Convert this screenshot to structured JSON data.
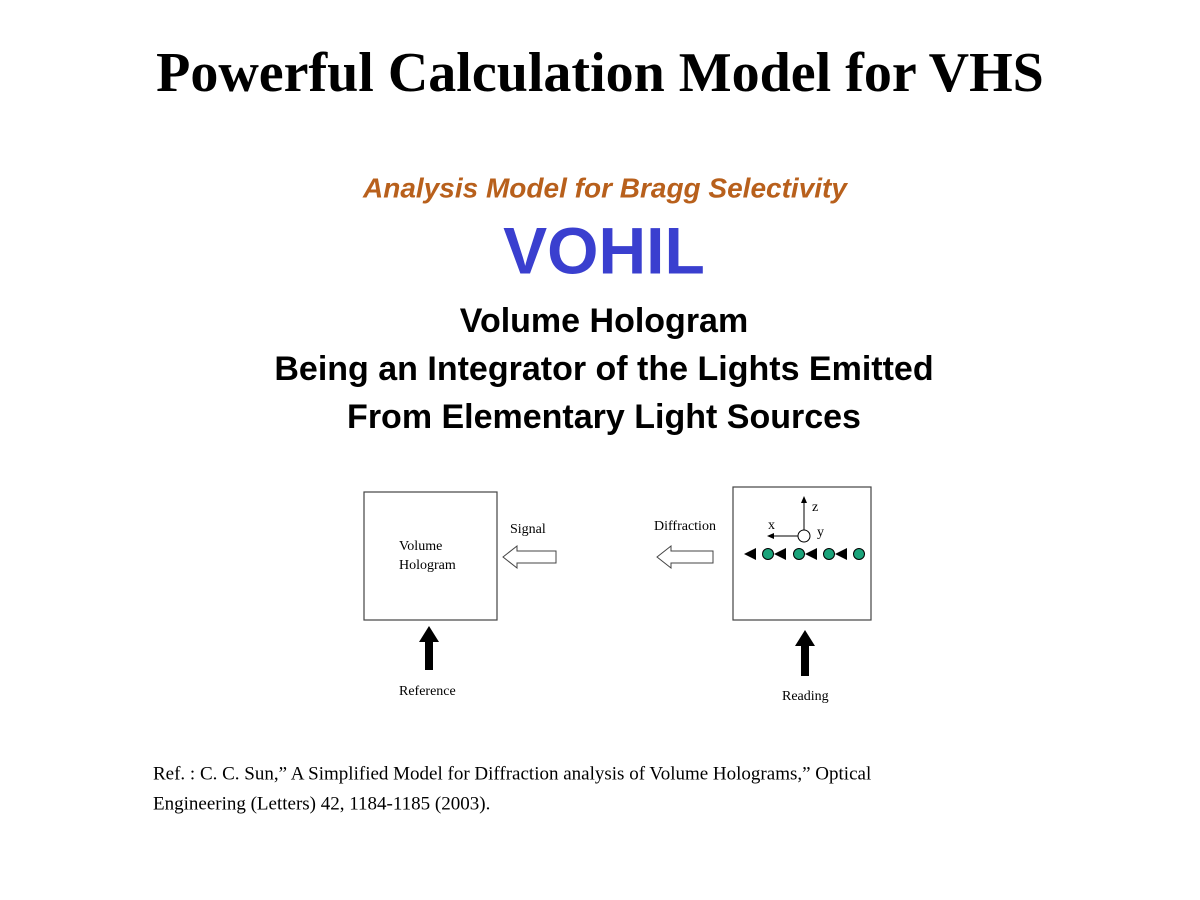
{
  "title": "Powerful Calculation Model for VHS",
  "subtitle": "Analysis Model for Bragg Selectivity",
  "acronym": "VOHIL",
  "description": [
    "Volume Hologram",
    "Being an Integrator of the Lights Emitted",
    "From Elementary Light Sources"
  ],
  "diagram": {
    "recording": {
      "box_label": [
        "Volume",
        "Hologram"
      ],
      "output": "Signal",
      "input": "Reference"
    },
    "reading": {
      "output": "Diffraction",
      "input": "Reading",
      "axes": [
        "z",
        "x",
        "y"
      ]
    }
  },
  "reference": [
    "Ref. : C. C. Sun,” A Simplified Model for Diffraction analysis of Volume Holograms,” Optical",
    "Engineering (Letters) 42, 1184-1185 (2003)."
  ]
}
